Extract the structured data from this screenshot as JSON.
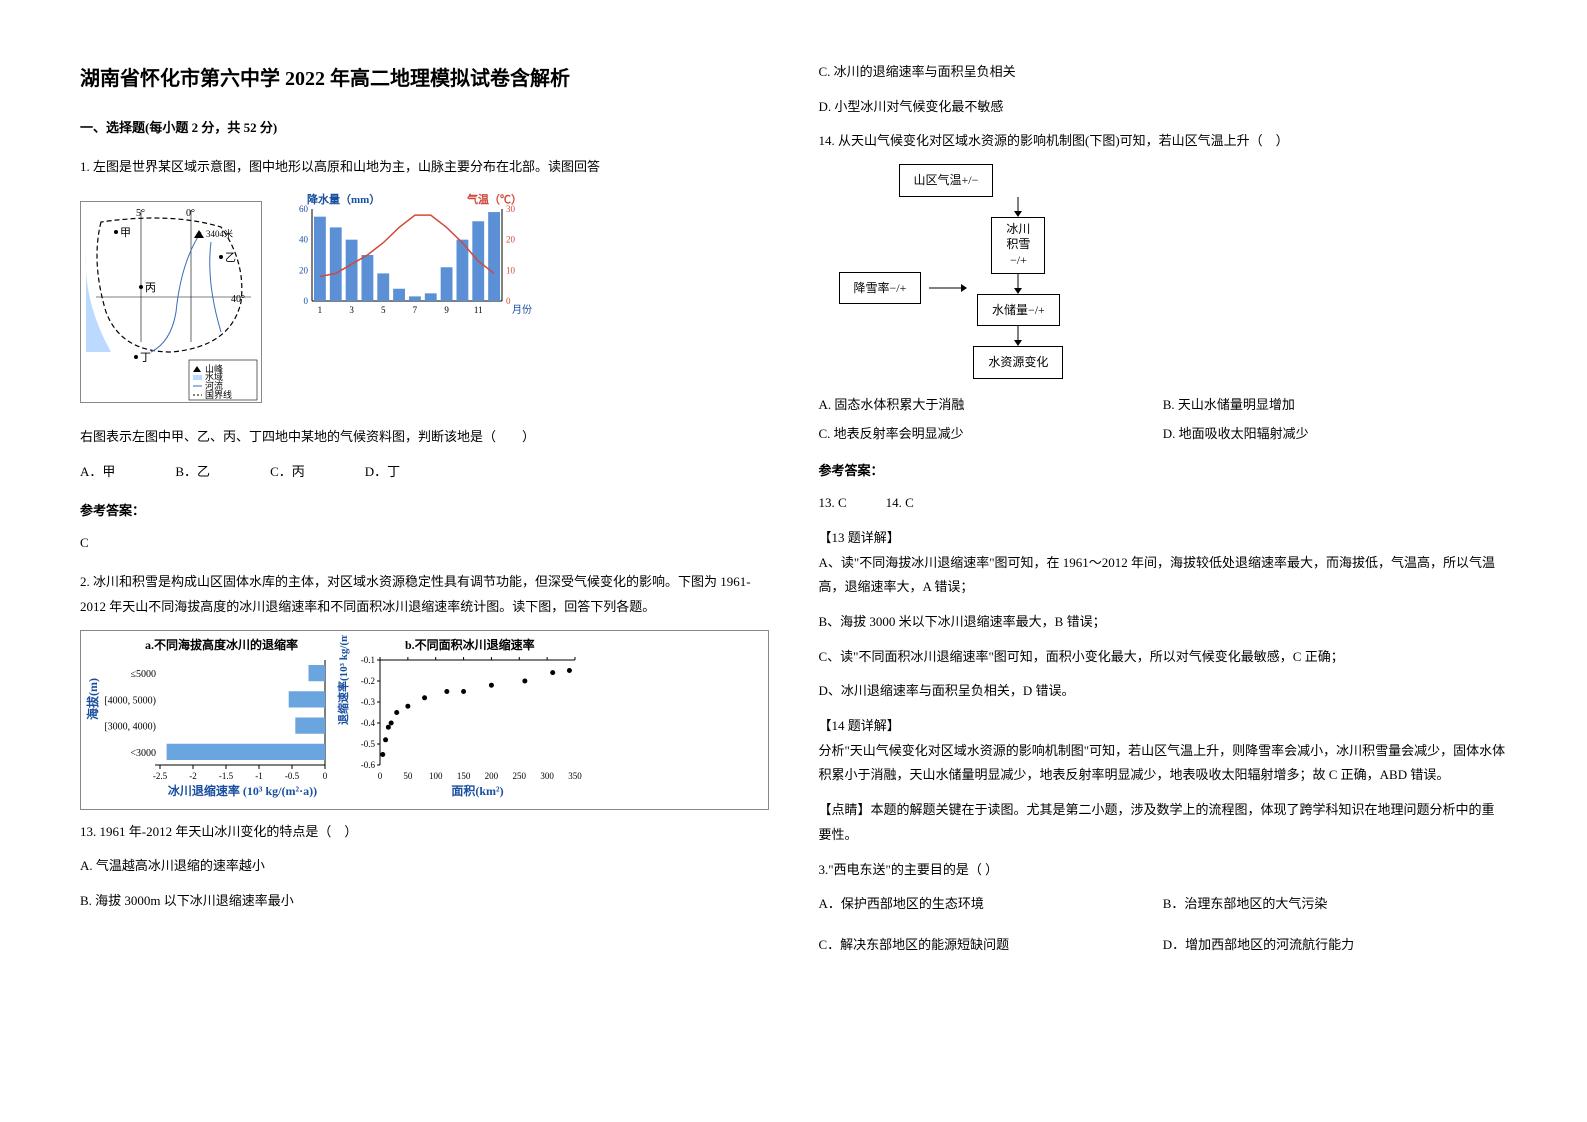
{
  "title": "湖南省怀化市第六中学 2022 年高二地理模拟试卷含解析",
  "section1": "一、选择题(每小题 2 分，共 52 分)",
  "q1": {
    "stem": "1. 左图是世界某区域示意图，图中地形以高原和山地为主，山脉主要分布在北部。读图回答",
    "caption": "右图表示左图中甲、乙、丙、丁四地中某地的气候资料图，判断该地是（　　）",
    "opts": {
      "a": "A．甲",
      "b": "B．乙",
      "c": "C．丙",
      "d": "D．丁"
    },
    "answer_label": "参考答案：",
    "answer": "C",
    "map": {
      "lon_labels": [
        "5°",
        "0°"
      ],
      "lat_label": "40°",
      "peak": "3404米",
      "legend": [
        "山峰",
        "水域",
        "河流",
        "国界线"
      ],
      "points": [
        "甲",
        "乙",
        "丙",
        "丁"
      ]
    },
    "climate": {
      "precip_label": "降水量（mm）",
      "temp_label": "气温（℃）",
      "x_label": "月份",
      "x_ticks": [
        1,
        3,
        5,
        7,
        9,
        11
      ],
      "y_precip": [
        0,
        20,
        40,
        60
      ],
      "y_temp": [
        0,
        10,
        20,
        30
      ],
      "precip_values": [
        55,
        48,
        40,
        30,
        18,
        8,
        3,
        5,
        22,
        40,
        52,
        58
      ],
      "temp_values": [
        8,
        9,
        12,
        15,
        19,
        24,
        28,
        28,
        24,
        19,
        13,
        9
      ],
      "bar_color": "#5b8fd6",
      "line_color": "#d04a3a",
      "axis_color": "#000"
    }
  },
  "q2": {
    "stem": "2. 冰川和积雪是构成山区固体水库的主体，对区域水资源稳定性具有调节功能，但深受气候变化的影响。下图为 1961-2012 年天山不同海拔高度的冰川退缩速率和不同面积冰川退缩速率统计图。读下图，回答下列各题。",
    "chart_a": {
      "title": "a.不同海拔高度冰川的退缩率",
      "y_label": "海拔(m)",
      "y_cats": [
        "≤5000",
        "[4000, 5000)",
        "[3000, 4000)",
        "<3000"
      ],
      "x_label": "冰川退缩速率 (10³ kg/(m²·a))",
      "x_ticks": [
        0,
        -0.5,
        -1.0,
        -1.5,
        -2.0,
        -2.5
      ],
      "values": [
        -0.25,
        -0.55,
        -0.45,
        -2.4
      ],
      "bar_color": "#6aa5e0",
      "text_color": "#1a4fa0"
    },
    "chart_b": {
      "title": "b.不同面积冰川退缩速率",
      "y_label": "退缩速率(10³ kg/(m²·a))",
      "x_label": "面积(km²)",
      "y_ticks": [
        -0.1,
        -0.2,
        -0.3,
        -0.4,
        -0.5,
        -0.6
      ],
      "x_ticks": [
        0,
        50,
        100,
        150,
        200,
        250,
        300,
        350
      ],
      "points": [
        [
          5,
          -0.55
        ],
        [
          10,
          -0.48
        ],
        [
          15,
          -0.42
        ],
        [
          20,
          -0.4
        ],
        [
          30,
          -0.35
        ],
        [
          50,
          -0.32
        ],
        [
          80,
          -0.28
        ],
        [
          120,
          -0.25
        ],
        [
          150,
          -0.25
        ],
        [
          200,
          -0.22
        ],
        [
          260,
          -0.2
        ],
        [
          310,
          -0.16
        ],
        [
          340,
          -0.15
        ]
      ],
      "dot_color": "#000",
      "text_color": "#1a4fa0"
    },
    "q13": "13.  1961 年-2012 年天山冰川变化的特点是（　）",
    "q13_opts": {
      "a": "A.  气温越高冰川退缩的速率越小",
      "b": "B.  海拔 3000m 以下冰川退缩速率最小",
      "c": "C.  冰川的退缩速率与面积呈负相关",
      "d": "D.  小型冰川对气候变化最不敏感"
    },
    "q14": "14.  从天山气候变化对区域水资源的影响机制图(下图)可知，若山区气温上升（　）",
    "flow": {
      "n1": "山区气温+/−",
      "n2": "降雪率−/+",
      "n3": "冰川\n积雪\n−/+",
      "n4": "水储量−/+",
      "n5": "水资源变化"
    },
    "q14_opts": {
      "a": "A.  固态水体积累大于消融",
      "b": "B.  天山水储量明显增加",
      "c": "C.  地表反射率会明显减少",
      "d": "D.  地面吸收太阳辐射减少"
    },
    "answer_label": "参考答案：",
    "answers": "13.  C　　　14.  C",
    "exp13_title": "【13 题详解】",
    "exp13_a": "A、读\"不同海拔冰川退缩速率\"图可知，在 1961～2012 年间，海拔较低处退缩速率最大，而海拔低，气温高，所以气温高，退缩速率大，A 错误；",
    "exp13_b": "B、海拔 3000 米以下冰川退缩速率最大，B 错误；",
    "exp13_c": "C、读\"不同面积冰川退缩速率\"图可知，面积小变化最大，所以对气候变化最敏感，C 正确；",
    "exp13_d": "D、冰川退缩速率与面积呈负相关，D 错误。",
    "exp14_title": "【14 题详解】",
    "exp14_body": "分析\"天山气候变化对区域水资源的影响机制图\"可知，若山区气温上升，则降雪率会减小，冰川积雪量会减少，固体水体积累小于消融，天山水储量明显减少，地表反射率明显减少，地表吸收太阳辐射增多；故 C 正确，ABD 错误。",
    "tip": "【点睛】本题的解题关键在于读图。尤其是第二小题，涉及数学上的流程图，体现了跨学科知识在地理问题分析中的重要性。"
  },
  "q3": {
    "stem": "3.\"西电东送\"的主要目的是（ ）",
    "opts": {
      "a": "A．保护西部地区的生态环境",
      "b": "B．治理东部地区的大气污染",
      "c": "C．解决东部地区的能源短缺问题",
      "d": "D．增加西部地区的河流航行能力"
    }
  }
}
